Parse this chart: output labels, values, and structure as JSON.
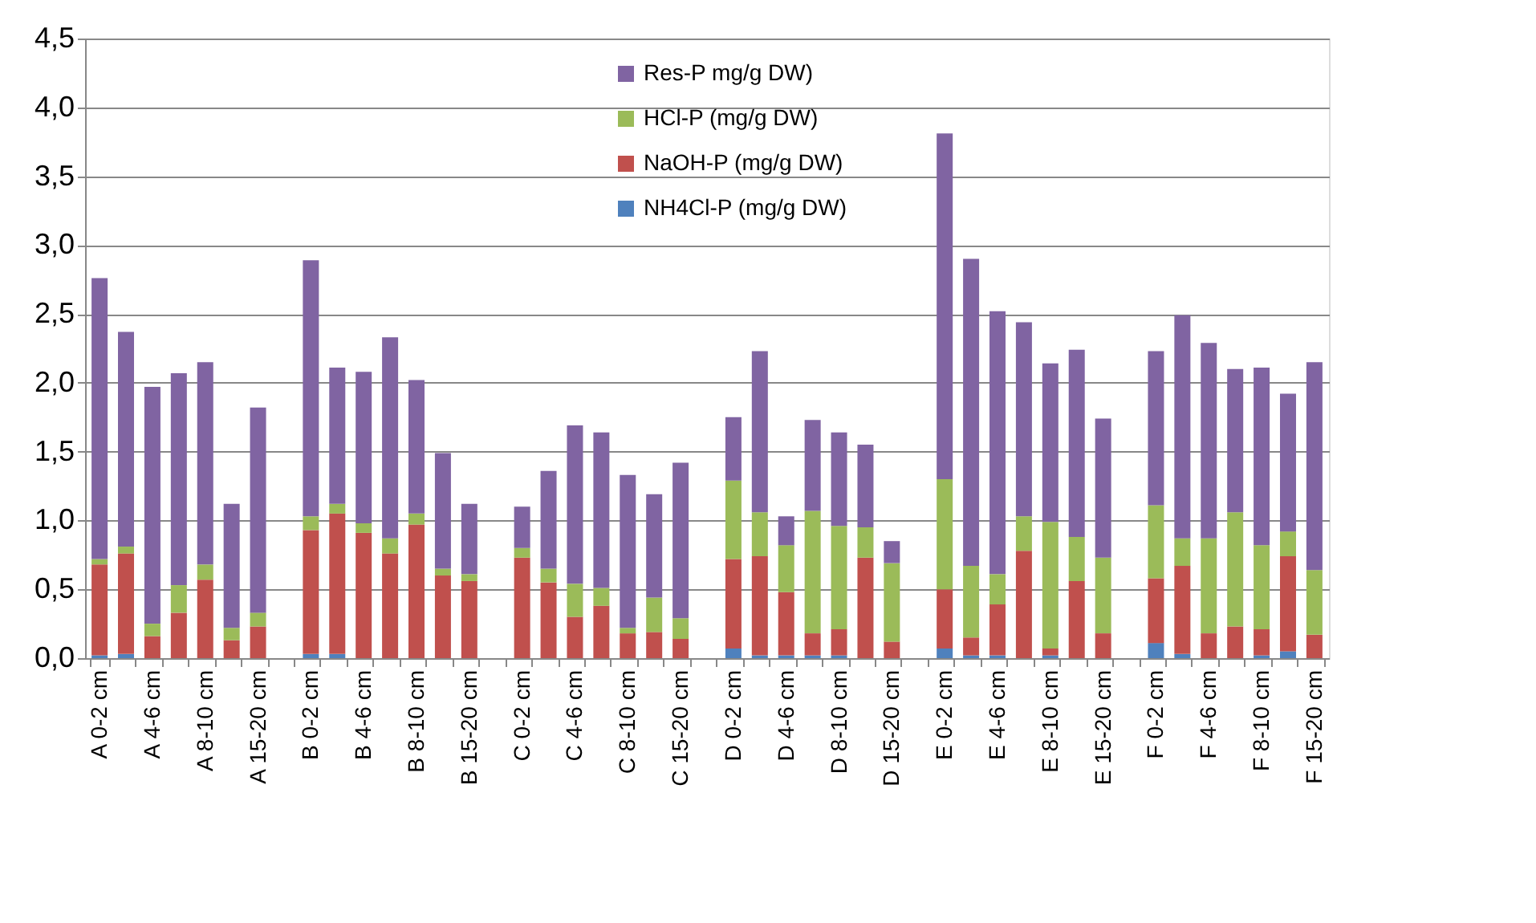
{
  "chart_data": {
    "type": "bar",
    "stacked": true,
    "categories": [
      "A 0-2 cm",
      null,
      "A 4-6 cm",
      null,
      "A 8-10 cm",
      null,
      "A 15-20 cm",
      null,
      "B 0-2 cm",
      null,
      "B 4-6 cm",
      null,
      "B 8-10 cm",
      null,
      "B 15-20 cm",
      null,
      "C 0-2 cm",
      null,
      "C 4-6 cm",
      null,
      "C 8-10 cm",
      null,
      "C 15-20 cm",
      null,
      "D 0-2 cm",
      null,
      "D 4-6 cm",
      null,
      "D 8-10 cm",
      null,
      "D 15-20 cm",
      null,
      "E 0-2 cm",
      null,
      "E 4-6 cm",
      null,
      "E 8-10 cm",
      null,
      "E 15-20 cm",
      null,
      "F 0-2 cm",
      null,
      "F 4-6 cm",
      null,
      "F 8-10 cm",
      null,
      "F 15-20 cm"
    ],
    "series": [
      {
        "name": "NH4Cl-P (mg/g DW)",
        "color": "#4f81bd",
        "values": [
          0.02,
          0.03,
          null,
          null,
          null,
          null,
          null,
          null,
          0.03,
          0.03,
          null,
          null,
          null,
          null,
          null,
          null,
          null,
          null,
          null,
          null,
          null,
          null,
          null,
          null,
          0.07,
          0.02,
          0.02,
          0.02,
          0.02,
          null,
          null,
          null,
          0.07,
          0.02,
          0.02,
          null,
          0.02,
          null,
          null,
          null,
          0.11,
          0.03,
          null,
          null,
          0.02,
          0.05,
          null
        ]
      },
      {
        "name": "NaOH-P (mg/g DW)",
        "color": "#c0504d",
        "values": [
          0.66,
          0.73,
          0.16,
          0.33,
          0.57,
          0.13,
          0.23,
          null,
          0.9,
          1.02,
          0.91,
          0.76,
          0.97,
          0.6,
          0.56,
          null,
          0.73,
          0.55,
          0.3,
          0.38,
          0.18,
          0.19,
          0.14,
          null,
          0.65,
          0.72,
          0.46,
          0.16,
          0.19,
          0.73,
          0.12,
          null,
          0.43,
          0.13,
          0.37,
          0.78,
          0.05,
          0.56,
          0.18,
          null,
          0.47,
          0.64,
          0.18,
          0.23,
          0.19,
          0.69,
          0.17
        ]
      },
      {
        "name": "HCl-P (mg/g DW)",
        "color": "#9bbb59",
        "values": [
          0.04,
          0.05,
          0.09,
          0.2,
          0.11,
          0.09,
          0.1,
          null,
          0.1,
          0.07,
          0.07,
          0.11,
          0.08,
          0.05,
          0.05,
          null,
          0.07,
          0.1,
          0.24,
          0.13,
          0.04,
          0.25,
          0.15,
          null,
          0.57,
          0.32,
          0.34,
          0.89,
          0.75,
          0.22,
          0.57,
          null,
          0.8,
          0.52,
          0.22,
          0.25,
          0.92,
          0.32,
          0.55,
          null,
          0.53,
          0.2,
          0.69,
          0.83,
          0.61,
          0.18,
          0.47
        ]
      },
      {
        "name": "Res-P mg/g DW)",
        "color": "#8064a2",
        "values": [
          2.04,
          1.56,
          1.72,
          1.54,
          1.47,
          0.9,
          1.49,
          null,
          1.86,
          0.99,
          1.1,
          1.46,
          0.97,
          0.84,
          0.51,
          null,
          0.3,
          0.71,
          1.15,
          1.13,
          1.11,
          0.75,
          1.13,
          null,
          0.46,
          1.17,
          0.21,
          0.66,
          0.68,
          0.6,
          0.16,
          null,
          2.51,
          2.23,
          1.91,
          1.41,
          1.15,
          1.36,
          1.01,
          null,
          1.12,
          1.62,
          1.42,
          1.04,
          1.29,
          1.0,
          1.51
        ]
      }
    ],
    "ylim": [
      0,
      4.5
    ],
    "yticks": [
      {
        "value": 0,
        "label": "0,0"
      },
      {
        "value": 0.5,
        "label": "0,5"
      },
      {
        "value": 1,
        "label": "1,0"
      },
      {
        "value": 1.5,
        "label": "1,5"
      },
      {
        "value": 2,
        "label": "2,0"
      },
      {
        "value": 2.5,
        "label": "2,5"
      },
      {
        "value": 3,
        "label": "3,0"
      },
      {
        "value": 3.5,
        "label": "3,5"
      },
      {
        "value": 4,
        "label": "4,0"
      },
      {
        "value": 4.5,
        "label": "4,5"
      }
    ],
    "grid": "y",
    "legend": "top"
  }
}
